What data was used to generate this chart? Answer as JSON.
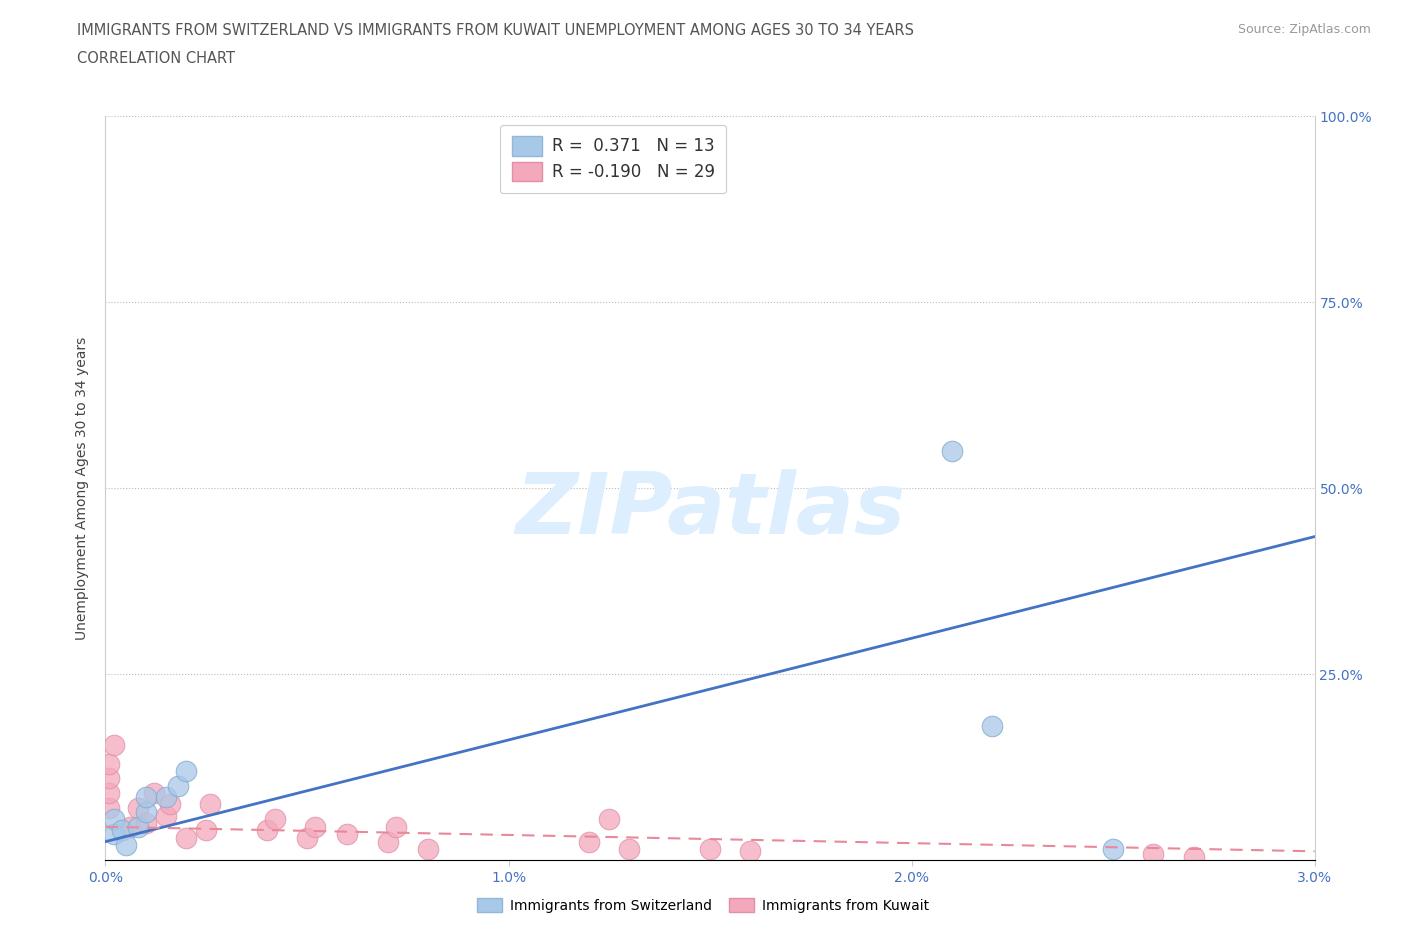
{
  "title_line1": "IMMIGRANTS FROM SWITZERLAND VS IMMIGRANTS FROM KUWAIT UNEMPLOYMENT AMONG AGES 30 TO 34 YEARS",
  "title_line2": "CORRELATION CHART",
  "source_text": "Source: ZipAtlas.com",
  "ylabel": "Unemployment Among Ages 30 to 34 years",
  "xlim": [
    0.0,
    0.03
  ],
  "ylim": [
    0.0,
    1.0
  ],
  "xtick_labels": [
    "0.0%",
    "1.0%",
    "2.0%",
    "3.0%"
  ],
  "xtick_values": [
    0.0,
    0.01,
    0.02,
    0.03
  ],
  "ytick_labels": [
    "25.0%",
    "50.0%",
    "75.0%",
    "100.0%"
  ],
  "ytick_values": [
    0.25,
    0.5,
    0.75,
    1.0
  ],
  "switzerland_color": "#A8C8E8",
  "kuwait_color": "#F4A8BC",
  "switzerland_line_color": "#4472C4",
  "kuwait_line_color": "#E88898",
  "background_color": "#FFFFFF",
  "watermark_text": "ZIPatlas",
  "legend_R_switzerland": "R =  0.371",
  "legend_N_switzerland": "N = 13",
  "legend_R_kuwait": "R = -0.190",
  "legend_N_kuwait": "N = 29",
  "sw_line_x0": 0.0,
  "sw_line_y0": 0.025,
  "sw_line_x1": 0.03,
  "sw_line_y1": 0.435,
  "kw_line_x0": 0.0,
  "kw_line_y0": 0.045,
  "kw_line_x1": 0.03,
  "kw_line_y1": 0.012,
  "switzerland_points": [
    [
      0.0002,
      0.035
    ],
    [
      0.0002,
      0.055
    ],
    [
      0.0004,
      0.04
    ],
    [
      0.0008,
      0.045
    ],
    [
      0.001,
      0.065
    ],
    [
      0.001,
      0.085
    ],
    [
      0.0015,
      0.085
    ],
    [
      0.0018,
      0.1
    ],
    [
      0.002,
      0.12
    ],
    [
      0.021,
      0.55
    ],
    [
      0.022,
      0.18
    ],
    [
      0.025,
      0.015
    ],
    [
      0.0005,
      0.02
    ]
  ],
  "kuwait_points": [
    [
      0.0001,
      0.07
    ],
    [
      0.0001,
      0.09
    ],
    [
      0.0001,
      0.11
    ],
    [
      0.0001,
      0.13
    ],
    [
      0.0002,
      0.155
    ],
    [
      0.0006,
      0.045
    ],
    [
      0.0008,
      0.07
    ],
    [
      0.001,
      0.05
    ],
    [
      0.0012,
      0.09
    ],
    [
      0.0015,
      0.06
    ],
    [
      0.0016,
      0.075
    ],
    [
      0.002,
      0.03
    ],
    [
      0.0025,
      0.04
    ],
    [
      0.0026,
      0.075
    ],
    [
      0.004,
      0.04
    ],
    [
      0.0042,
      0.055
    ],
    [
      0.005,
      0.03
    ],
    [
      0.0052,
      0.045
    ],
    [
      0.006,
      0.035
    ],
    [
      0.007,
      0.025
    ],
    [
      0.0072,
      0.045
    ],
    [
      0.008,
      0.015
    ],
    [
      0.012,
      0.025
    ],
    [
      0.0125,
      0.055
    ],
    [
      0.013,
      0.015
    ],
    [
      0.015,
      0.015
    ],
    [
      0.016,
      0.012
    ],
    [
      0.026,
      0.008
    ],
    [
      0.027,
      0.005
    ]
  ],
  "title_fontsize": 10.5,
  "axis_label_fontsize": 10,
  "tick_fontsize": 10,
  "legend_fontsize": 12
}
